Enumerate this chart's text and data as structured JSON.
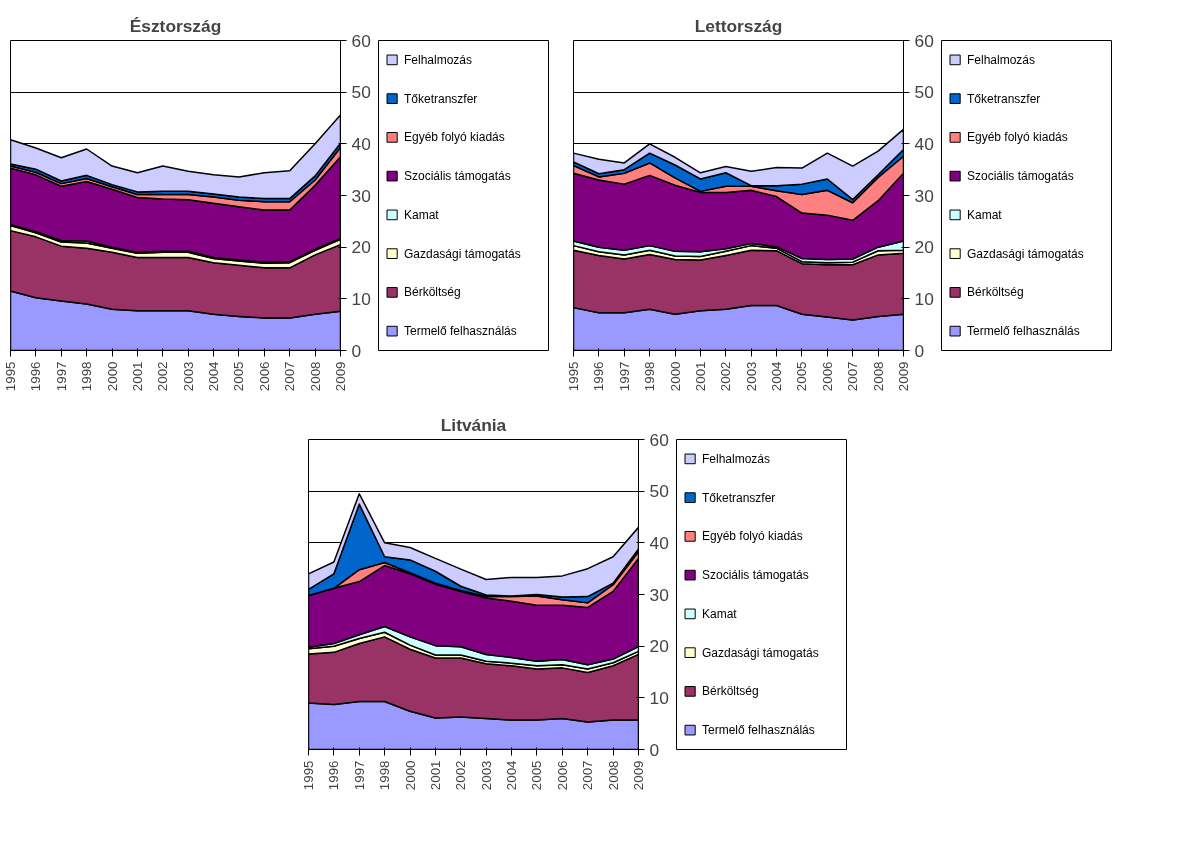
{
  "chart_data": [
    {
      "type": "area",
      "stacked": true,
      "title": "Észtország",
      "categories": [
        "1995",
        "1996",
        "1997",
        "1998",
        "2000",
        "2001",
        "2002",
        "2003",
        "2004",
        "2005",
        "2006",
        "2007",
        "2008",
        "2009"
      ],
      "ylim": [
        0,
        60
      ],
      "yticks": [
        0,
        10,
        20,
        30,
        40,
        50,
        60
      ],
      "grid": "y",
      "legend": "right",
      "series": [
        {
          "name": "Termelő felhasználás",
          "color": "#9999ff",
          "values": [
            11.5,
            10.2,
            9.6,
            9.0,
            8.0,
            7.7,
            7.7,
            7.7,
            7.0,
            6.6,
            6.3,
            6.3,
            7.0,
            7.6
          ]
        },
        {
          "name": "Bérköltség",
          "color": "#993366",
          "values": [
            11.7,
            11.8,
            10.6,
            10.8,
            11.0,
            10.3,
            10.3,
            10.3,
            10.0,
            9.9,
            9.7,
            9.7,
            11.5,
            12.9
          ]
        },
        {
          "name": "Gazdasági támogatás",
          "color": "#ffffcc",
          "values": [
            1.0,
            0.8,
            0.8,
            1.0,
            0.8,
            0.8,
            1.0,
            1.0,
            0.8,
            0.8,
            0.9,
            1.0,
            0.9,
            1.0
          ]
        },
        {
          "name": "Kamat",
          "color": "#ccffff",
          "values": [
            0.2,
            0.2,
            0.3,
            0.4,
            0.2,
            0.2,
            0.2,
            0.2,
            0.2,
            0.2,
            0.2,
            0.2,
            0.2,
            0.2
          ]
        },
        {
          "name": "Szociális támogatás",
          "color": "#800080",
          "values": [
            10.9,
            11.0,
            10.5,
            11.5,
            11.2,
            10.6,
            10.1,
            10.0,
            10.5,
            10.3,
            10.1,
            10.0,
            12.4,
            15.8
          ]
        },
        {
          "name": "Egyéb folyó kiadás",
          "color": "#ff8080",
          "values": [
            0.4,
            0.5,
            0.5,
            0.6,
            0.5,
            0.6,
            0.9,
            1.0,
            1.2,
            1.3,
            1.6,
            1.6,
            1.0,
            1.8
          ]
        },
        {
          "name": "Tőketranszfer",
          "color": "#0066cc",
          "values": [
            0.4,
            0.6,
            0.5,
            0.6,
            0.4,
            0.5,
            0.6,
            0.6,
            0.6,
            0.6,
            0.6,
            0.6,
            0.8,
            0.8
          ]
        },
        {
          "name": "Felhalmozás",
          "color": "#ccccff",
          "values": [
            4.7,
            4.1,
            4.5,
            5.1,
            3.6,
            3.7,
            4.9,
            3.9,
            3.7,
            3.9,
            5.0,
            5.4,
            6.2,
            5.5
          ]
        }
      ]
    },
    {
      "type": "area",
      "stacked": true,
      "title": "Lettország",
      "categories": [
        "1995",
        "1996",
        "1997",
        "1998",
        "2000",
        "2001",
        "2002",
        "2003",
        "2004",
        "2005",
        "2006",
        "2007",
        "2008",
        "2009"
      ],
      "ylim": [
        0,
        60
      ],
      "yticks": [
        0,
        10,
        20,
        30,
        40,
        50,
        60
      ],
      "grid": "y",
      "legend": "right",
      "series": [
        {
          "name": "Termelő felhasználás",
          "color": "#9999ff",
          "values": [
            8.3,
            7.3,
            7.3,
            8.0,
            7.0,
            7.7,
            8.0,
            8.7,
            8.7,
            7.0,
            6.5,
            5.9,
            6.6,
            7.0
          ]
        },
        {
          "name": "Bérköltség",
          "color": "#993366",
          "values": [
            11.1,
            11.1,
            10.4,
            10.6,
            10.6,
            9.8,
            10.4,
            10.7,
            10.6,
            9.8,
            10.1,
            10.7,
            11.9,
            11.8
          ]
        },
        {
          "name": "Gazdasági támogatás",
          "color": "#ffffcc",
          "values": [
            0.9,
            0.7,
            0.8,
            0.8,
            0.7,
            0.7,
            0.8,
            0.9,
            0.5,
            0.4,
            0.4,
            0.5,
            0.8,
            0.6
          ]
        },
        {
          "name": "Kamat",
          "color": "#ccffff",
          "values": [
            0.9,
            0.9,
            0.9,
            0.9,
            0.9,
            0.9,
            0.5,
            0.4,
            0.3,
            0.6,
            0.6,
            0.6,
            0.7,
            1.8
          ]
        },
        {
          "name": "Szociális támogatás",
          "color": "#800080",
          "values": [
            13.1,
            13.0,
            12.8,
            13.6,
            12.8,
            11.5,
            10.9,
            10.3,
            9.7,
            8.8,
            8.6,
            7.5,
            9.0,
            13.1
          ]
        },
        {
          "name": "Egyéb folyó kiadás",
          "color": "#ff8080",
          "values": [
            1.5,
            0.6,
            2.1,
            2.4,
            1.4,
            0.2,
            1.2,
            0.8,
            1.1,
            3.6,
            4.8,
            3.4,
            4.5,
            3.3
          ]
        },
        {
          "name": "Tőketranszfer",
          "color": "#0066cc",
          "values": [
            0.7,
            0.6,
            0.7,
            1.9,
            2.5,
            2.4,
            2.6,
            0.1,
            1.0,
            2.0,
            2.2,
            0.6,
            0.5,
            1.3
          ]
        },
        {
          "name": "Felhalmozás",
          "color": "#ccccff",
          "values": [
            1.7,
            2.8,
            1.3,
            1.8,
            1.5,
            1.2,
            1.2,
            2.8,
            3.5,
            3.1,
            5.0,
            6.5,
            4.6,
            3.9
          ]
        }
      ]
    },
    {
      "type": "area",
      "stacked": true,
      "title": "Litvánia",
      "categories": [
        "1995",
        "1996",
        "1997",
        "1998",
        "2000",
        "2001",
        "2002",
        "2003",
        "2004",
        "2005",
        "2006",
        "2007",
        "2008",
        "2009"
      ],
      "ylim": [
        0,
        60
      ],
      "yticks": [
        0,
        10,
        20,
        30,
        40,
        50,
        60
      ],
      "grid": "y",
      "legend": "right",
      "series": [
        {
          "name": "Termelő felhasználás",
          "color": "#9999ff",
          "values": [
            9.0,
            8.7,
            9.3,
            9.3,
            7.4,
            6.1,
            6.3,
            6.0,
            5.7,
            5.7,
            6.0,
            5.3,
            5.7,
            5.7
          ]
        },
        {
          "name": "Bérköltség",
          "color": "#993366",
          "values": [
            9.5,
            10.1,
            11.2,
            12.5,
            12.0,
            11.6,
            11.4,
            10.6,
            10.5,
            9.9,
            9.8,
            9.6,
            10.5,
            12.7
          ]
        },
        {
          "name": "Gazdasági támogatás",
          "color": "#ffffcc",
          "values": [
            1.0,
            1.2,
            1.0,
            0.9,
            0.8,
            0.6,
            0.6,
            0.5,
            0.5,
            0.6,
            0.6,
            0.7,
            0.6,
            0.6
          ]
        },
        {
          "name": "Kamat",
          "color": "#ccffff",
          "values": [
            0.3,
            0.5,
            0.7,
            1.1,
            1.6,
            1.8,
            1.6,
            1.3,
            1.1,
            0.9,
            1.0,
            0.8,
            0.7,
            0.9
          ]
        },
        {
          "name": "Szociális támogatás",
          "color": "#800080",
          "values": [
            10.0,
            10.7,
            10.3,
            11.8,
            12.2,
            11.9,
            10.7,
            10.9,
            10.9,
            10.8,
            10.5,
            11.1,
            13.1,
            17.1
          ]
        },
        {
          "name": "Egyéb folyó kiadás",
          "color": "#ff8080",
          "values": [
            0.0,
            0.0,
            2.3,
            0.6,
            0.2,
            0.2,
            0.2,
            0.3,
            0.9,
            1.8,
            1.1,
            0.9,
            1.3,
            1.3
          ]
        },
        {
          "name": "Tőketranszfer",
          "color": "#0066cc",
          "values": [
            1.2,
            2.8,
            12.7,
            1.1,
            2.5,
            2.3,
            0.8,
            0.3,
            0.1,
            0.3,
            0.5,
            1.2,
            0.3,
            0.5
          ]
        },
        {
          "name": "Felhalmozás",
          "color": "#ccccff",
          "values": [
            3.0,
            2.3,
            2.0,
            2.7,
            2.4,
            2.5,
            3.3,
            3.0,
            3.6,
            3.3,
            4.1,
            5.4,
            5.1,
            4.2
          ]
        }
      ]
    }
  ]
}
